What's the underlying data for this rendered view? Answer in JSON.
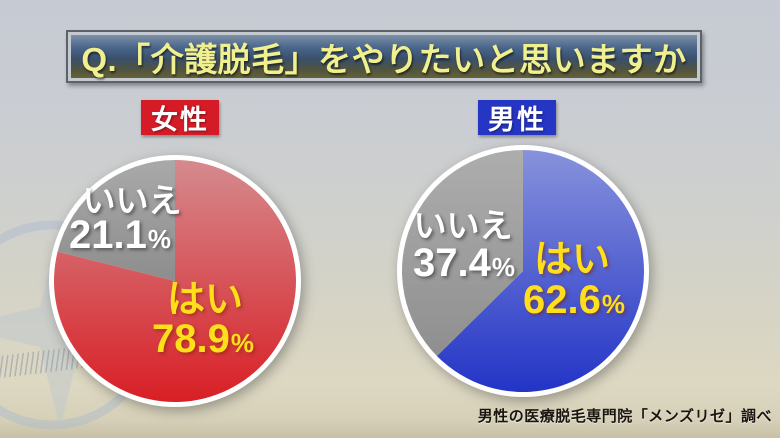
{
  "banner": {
    "title": "Q.「介護脱毛」をやりたいと思いますか"
  },
  "source": "男性の医療脱毛専門院「メンズリゼ」調べ",
  "chart_data": [
    {
      "type": "pie",
      "group_label": "女性",
      "group_color": "#d41b26",
      "start_angle_deg": -90,
      "direction": "clockwise",
      "slices": [
        {
          "label": "はい",
          "value": 78.9,
          "value_text": "78.9",
          "unit": "%",
          "gradient": [
            "#d58a8e",
            "#d81f25"
          ],
          "text_color": "#ffdf1a"
        },
        {
          "label": "いいえ",
          "value": 21.1,
          "value_text": "21.1",
          "unit": "%",
          "gradient": [
            "#a9a9a9",
            "#8d8d8d"
          ],
          "text_color": "#ffffff"
        }
      ]
    },
    {
      "type": "pie",
      "group_label": "男性",
      "group_color": "#2636c4",
      "start_angle_deg": -90,
      "direction": "clockwise",
      "slices": [
        {
          "label": "はい",
          "value": 62.6,
          "value_text": "62.6",
          "unit": "%",
          "gradient": [
            "#8792dc",
            "#2334c6"
          ],
          "text_color": "#ffdf1a"
        },
        {
          "label": "いいえ",
          "value": 37.4,
          "value_text": "37.4",
          "unit": "%",
          "gradient": [
            "#adadad",
            "#8f8f8f"
          ],
          "text_color": "#ffffff"
        }
      ]
    }
  ]
}
